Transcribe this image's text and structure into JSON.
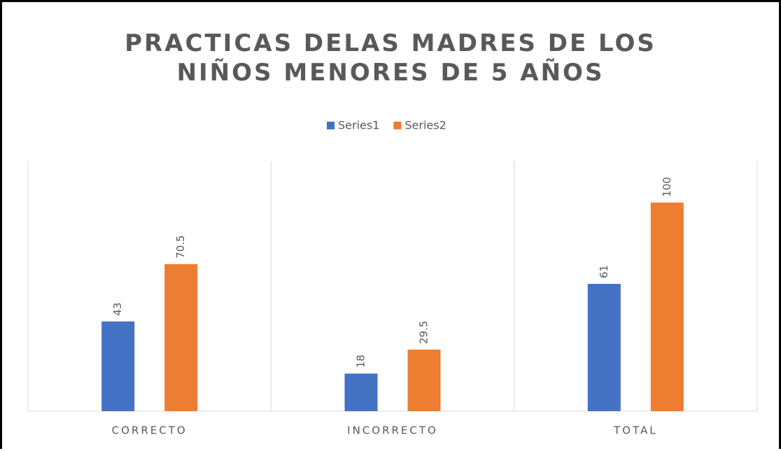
{
  "chart_data": {
    "type": "bar",
    "title": "PRACTICAS DELAS MADRES DE LOS NIÑOS MENORES DE 5 AÑOS",
    "categories": [
      "CORRECTO",
      "INCORRECTO",
      "TOTAL"
    ],
    "series": [
      {
        "name": "Series1",
        "color": "#4472c4",
        "values": [
          43,
          18,
          61
        ]
      },
      {
        "name": "Series2",
        "color": "#ed7d31",
        "values": [
          70.5,
          29.5,
          100
        ]
      }
    ],
    "ylim": [
      0,
      120
    ]
  }
}
